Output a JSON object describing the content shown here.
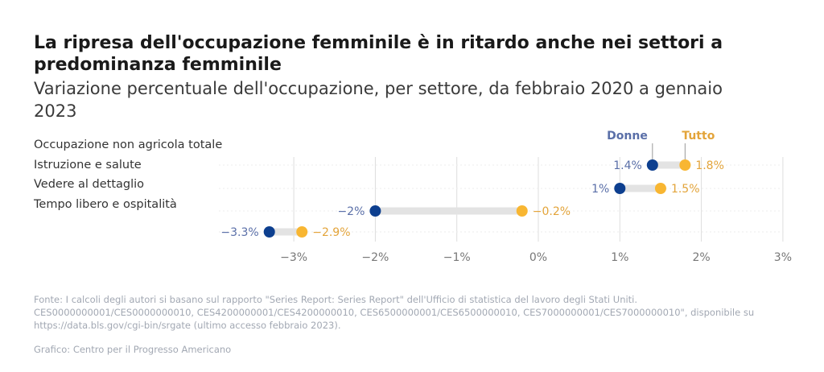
{
  "header": {
    "title": "La ripresa dell'occupazione femminile è in ritardo anche nei settori a predominanza femminile",
    "subtitle": "Variazione percentuale dell'occupazione, per settore, da febbraio 2020 a gennaio 2023"
  },
  "colors": {
    "donne": "#0d3f8f",
    "tutto": "#f8b632",
    "donne_label": "#5a6fa8",
    "tutto_label": "#e3a43a",
    "connector": "#e3e3e3",
    "grid": "#dddddd",
    "tick": "#777777"
  },
  "chart_data": {
    "type": "dumbbell",
    "categories": [
      "Occupazione non agricola totale",
      "Istruzione e salute",
      "Vedere al dettaglio",
      "Tempo libero e ospitalità"
    ],
    "series": [
      {
        "name": "Donne",
        "values": [
          1.4,
          1.0,
          -2.0,
          -3.3
        ],
        "labels": [
          "1.4%",
          "1%",
          "−2%",
          "−3.3%"
        ]
      },
      {
        "name": "Tutto",
        "values": [
          1.8,
          1.5,
          -0.2,
          -2.9
        ],
        "labels": [
          "1.8%",
          "1.5%",
          "−0.2%",
          "−2.9%"
        ]
      }
    ],
    "x_ticks": [
      -3,
      -2,
      -1,
      0,
      1,
      2,
      3
    ],
    "x_tick_labels": [
      "−3%",
      "−2%",
      "−1%",
      "0%",
      "1%",
      "2%",
      "3%"
    ],
    "xlim": [
      -3.3,
      3
    ],
    "grid": true,
    "legend": "top-right, labels above first row"
  },
  "footer": {
    "source": "Fonte: I calcoli degli autori si basano sul rapporto \"Series Report: Series Report\" dell'Ufficio di statistica del lavoro degli Stati Uniti. CES0000000001/CES0000000010, CES4200000001/CES4200000010, CES6500000001/CES6500000010, CES7000000001/CES7000000010\", disponibile su https://data.bls.gov/cgi-bin/srgate (ultimo accesso febbraio 2023).",
    "credit": "Grafico: Centro per il Progresso Americano"
  }
}
